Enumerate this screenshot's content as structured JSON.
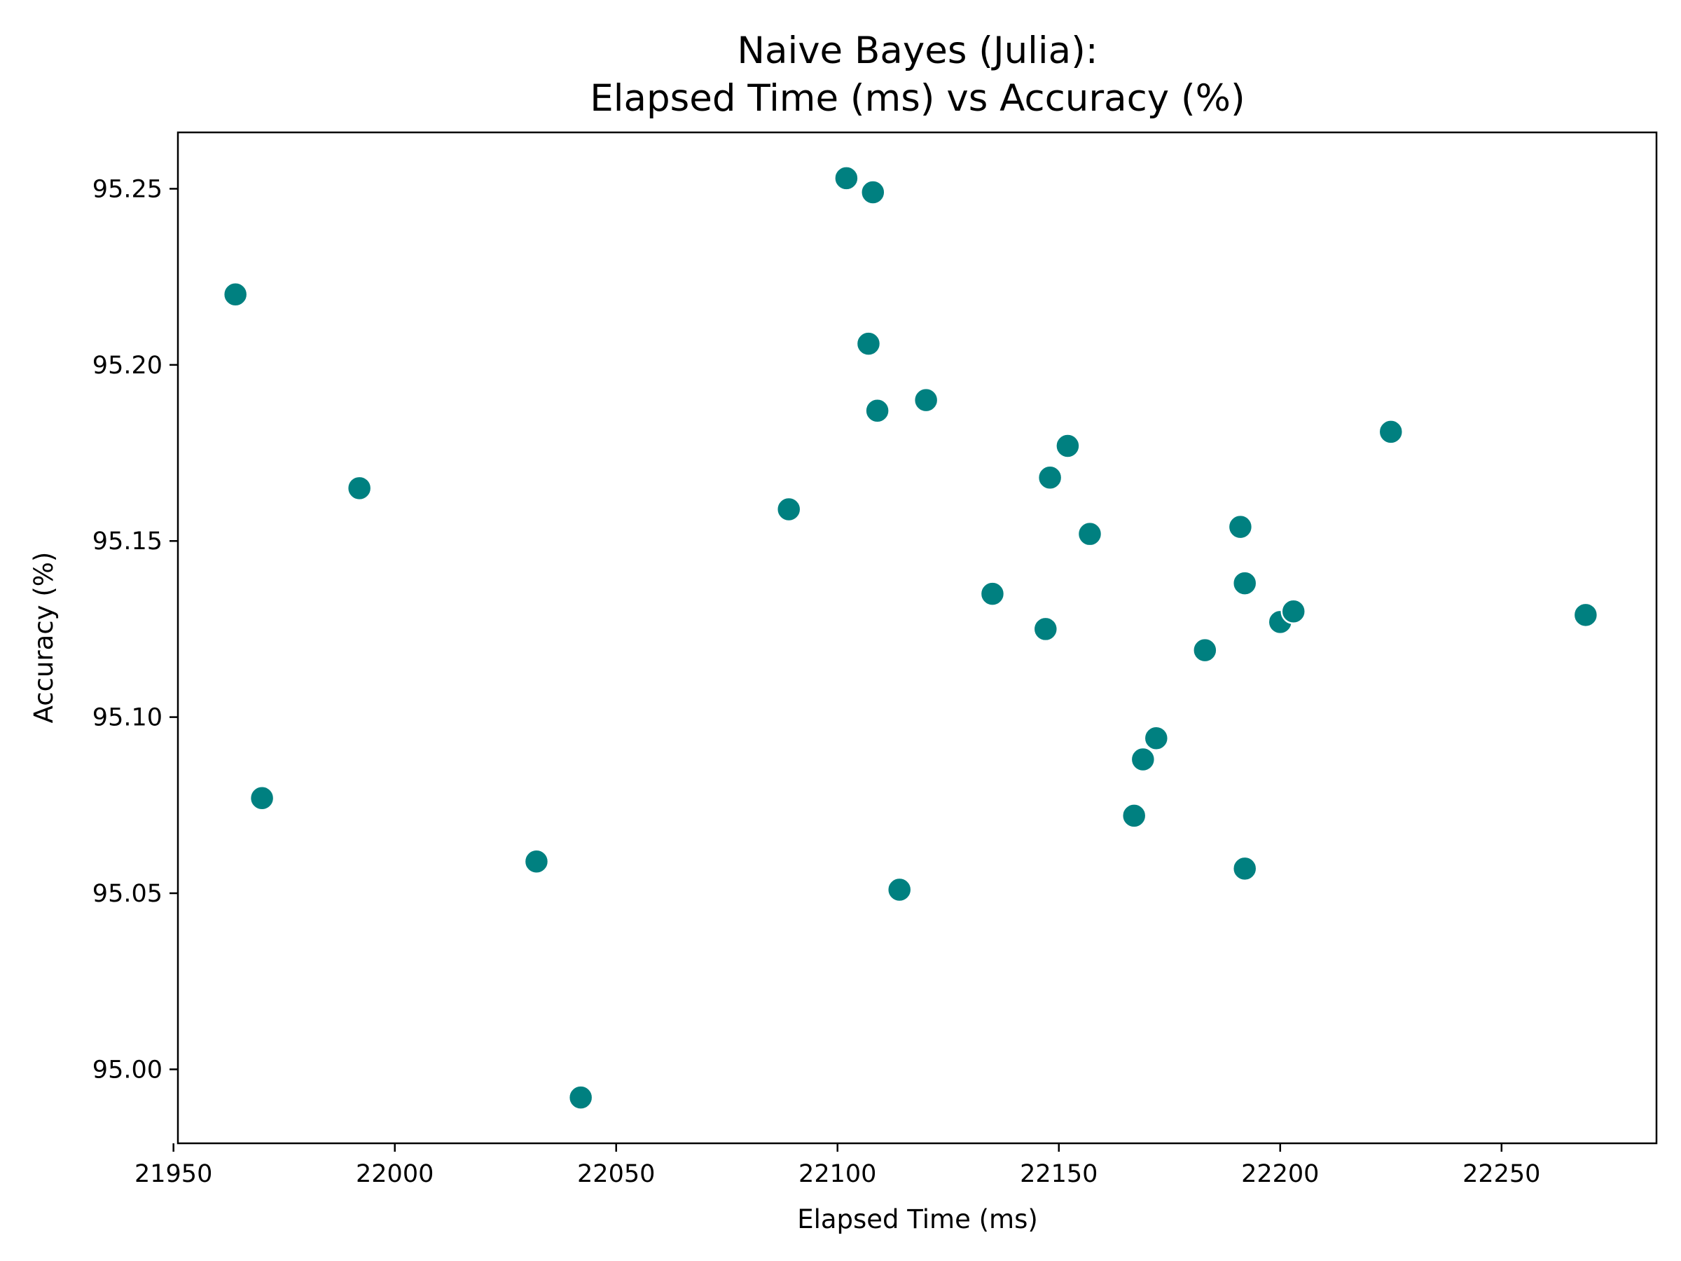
{
  "chart_data": {
    "type": "scatter",
    "title": [
      "Naive Bayes (Julia):",
      "Elapsed Time (ms) vs Accuracy (%)"
    ],
    "xlabel": "Elapsed Time (ms)",
    "ylabel": "Accuracy (%)",
    "xlim": [
      21951,
      22285
    ],
    "ylim": [
      94.979,
      95.266
    ],
    "xticks": [
      21950,
      22000,
      22050,
      22100,
      22150,
      22200,
      22250
    ],
    "xtick_labels": [
      "21950",
      "22000",
      "22050",
      "22100",
      "22150",
      "22200",
      "22250"
    ],
    "yticks": [
      95.0,
      95.05,
      95.1,
      95.15,
      95.2,
      95.25
    ],
    "ytick_labels": [
      "95.00",
      "95.05",
      "95.10",
      "95.15",
      "95.20",
      "95.25"
    ],
    "grid": false,
    "marker_color": "#008080",
    "points": [
      {
        "x": 21964,
        "y": 95.22
      },
      {
        "x": 21970,
        "y": 95.077
      },
      {
        "x": 21992,
        "y": 95.165
      },
      {
        "x": 22032,
        "y": 95.059
      },
      {
        "x": 22042,
        "y": 94.992
      },
      {
        "x": 22089,
        "y": 95.159
      },
      {
        "x": 22102,
        "y": 95.253
      },
      {
        "x": 22107,
        "y": 95.206
      },
      {
        "x": 22108,
        "y": 95.249
      },
      {
        "x": 22109,
        "y": 95.187
      },
      {
        "x": 22114,
        "y": 95.051
      },
      {
        "x": 22120,
        "y": 95.19
      },
      {
        "x": 22135,
        "y": 95.135
      },
      {
        "x": 22147,
        "y": 95.125
      },
      {
        "x": 22148,
        "y": 95.168
      },
      {
        "x": 22152,
        "y": 95.177
      },
      {
        "x": 22157,
        "y": 95.152
      },
      {
        "x": 22167,
        "y": 95.072
      },
      {
        "x": 22169,
        "y": 95.088
      },
      {
        "x": 22172,
        "y": 95.094
      },
      {
        "x": 22183,
        "y": 95.119
      },
      {
        "x": 22191,
        "y": 95.154
      },
      {
        "x": 22192,
        "y": 95.138
      },
      {
        "x": 22192,
        "y": 95.057
      },
      {
        "x": 22200,
        "y": 95.127
      },
      {
        "x": 22203,
        "y": 95.13
      },
      {
        "x": 22225,
        "y": 95.181
      },
      {
        "x": 22269,
        "y": 95.129
      }
    ]
  }
}
